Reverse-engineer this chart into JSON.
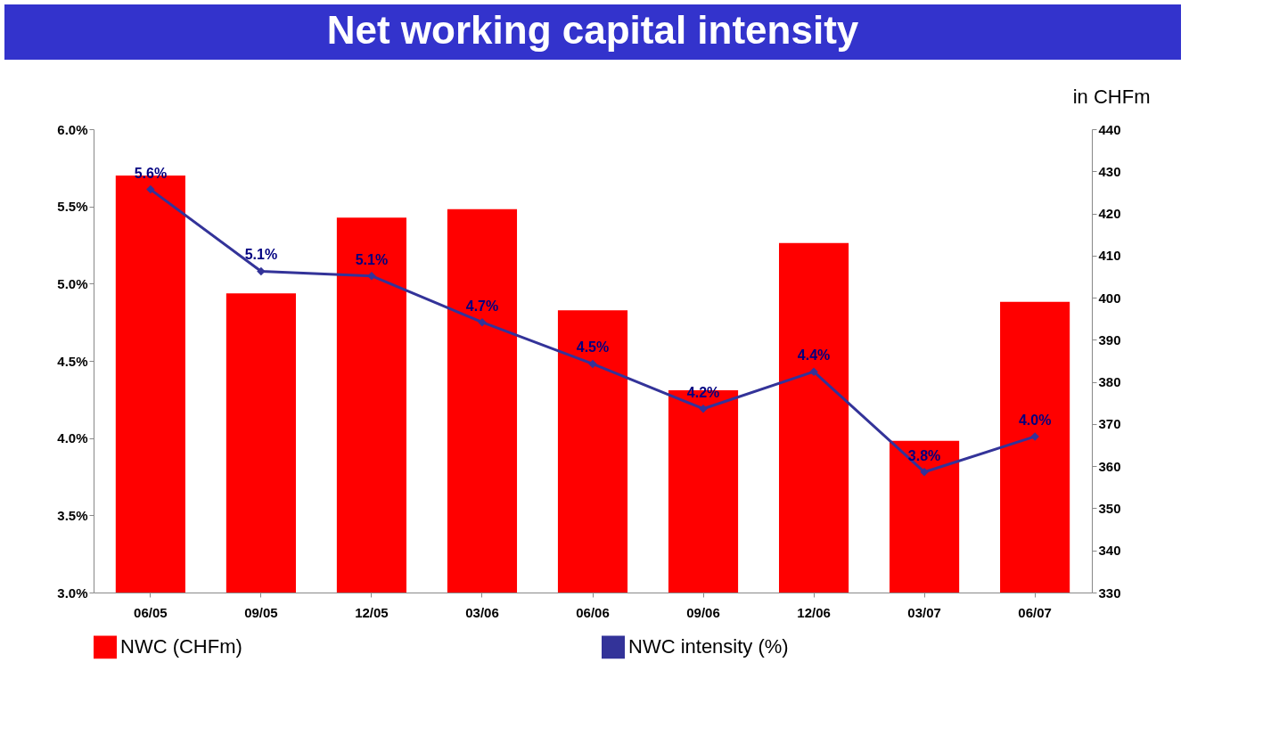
{
  "chart_data": {
    "type": "bar",
    "title": "Net working capital intensity",
    "y2label": "in CHFm",
    "categories": [
      "06/05",
      "09/05",
      "12/05",
      "03/06",
      "06/06",
      "09/06",
      "12/06",
      "03/07",
      "06/07"
    ],
    "series": [
      {
        "name": "NWC (CHFm)",
        "type": "bar",
        "axis": "y2",
        "color": "#ff0000",
        "values": [
          429,
          401,
          419,
          421,
          397,
          378,
          413,
          366,
          399
        ]
      },
      {
        "name": "NWC intensity (%)",
        "type": "line",
        "color": "#333399",
        "marker": "diamond",
        "values": [
          5.61,
          5.08,
          5.05,
          4.75,
          4.48,
          4.19,
          4.43,
          3.78,
          4.01
        ],
        "value_labels": [
          "5.6%",
          "5.1%",
          "5.1%",
          "4.7%",
          "4.5%",
          "4.2%",
          "4.4%",
          "3.8%",
          "4.0%"
        ]
      }
    ],
    "ylim": [
      3.0,
      6.0
    ],
    "yticks": [
      {
        "value": 3.0,
        "label": "3.0%"
      },
      {
        "value": 3.5,
        "label": "3.5%"
      },
      {
        "value": 4.0,
        "label": "4.0%"
      },
      {
        "value": 4.5,
        "label": "4.5%"
      },
      {
        "value": 5.0,
        "label": "5.0%"
      },
      {
        "value": 5.5,
        "label": "5.5%"
      },
      {
        "value": 6.0,
        "label": "6.0%"
      }
    ],
    "y2lim": [
      330,
      440
    ],
    "y2ticks": [
      330,
      340,
      350,
      360,
      370,
      380,
      390,
      400,
      410,
      420,
      430,
      440
    ],
    "grid": false,
    "legend": "bottom"
  }
}
